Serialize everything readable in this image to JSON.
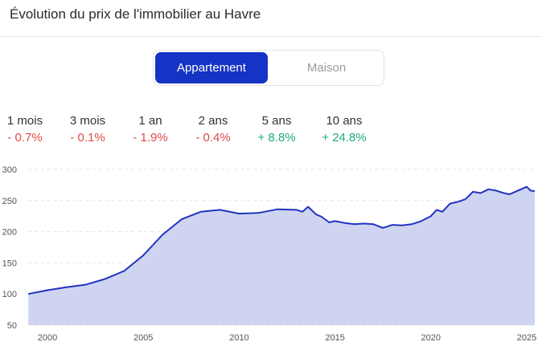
{
  "title": "Évolution du prix de l'immobilier au Havre",
  "toggle": {
    "active": "Appartement",
    "inactive": "Maison"
  },
  "periods": [
    {
      "label": "1 mois",
      "value": "- 0.7%",
      "trend": "down"
    },
    {
      "label": "3 mois",
      "value": "- 0.1%",
      "trend": "down"
    },
    {
      "label": "1 an",
      "value": "- 1.9%",
      "trend": "down"
    },
    {
      "label": "2 ans",
      "value": "- 0.4%",
      "trend": "down"
    },
    {
      "label": "5 ans",
      "value": "+ 8.8%",
      "trend": "up"
    },
    {
      "label": "10 ans",
      "value": "+ 24.8%",
      "trend": "up"
    }
  ],
  "colors": {
    "accent": "#1533c4",
    "line": "#1f33c0",
    "area": "#cfd5f1",
    "down": "#e04a4a",
    "up": "#1fae7a"
  },
  "chart_data": {
    "type": "area",
    "title": "",
    "xlabel": "",
    "ylabel": "",
    "xlim": [
      1998.9,
      2025.5
    ],
    "ylim": [
      50,
      300
    ],
    "yticks": [
      50,
      100,
      150,
      200,
      250,
      300
    ],
    "xticks": [
      2000,
      2005,
      2010,
      2015,
      2020,
      2025
    ],
    "grid": true,
    "series": [
      {
        "x": [
          1999.0,
          2000.0,
          2001.0,
          2002.0,
          2003.0,
          2004.0,
          2005.0,
          2006.0,
          2007.0,
          2008.0,
          2009.0,
          2010.0,
          2011.0,
          2012.0,
          2013.0,
          2013.3,
          2013.6,
          2014.0,
          2014.3,
          2014.7,
          2015.0,
          2015.5,
          2016.0,
          2016.5,
          2017.0,
          2017.5,
          2018.0,
          2018.5,
          2019.0,
          2019.5,
          2020.0,
          2020.3,
          2020.6,
          2021.0,
          2021.4,
          2021.8,
          2022.2,
          2022.6,
          2023.0,
          2023.4,
          2023.8,
          2024.1,
          2024.4,
          2024.7,
          2025.0,
          2025.2,
          2025.5
        ],
        "y": [
          100,
          106,
          111,
          115,
          124,
          137,
          162,
          195,
          220,
          232,
          235,
          229,
          230,
          236,
          235,
          232,
          240,
          228,
          224,
          215,
          217,
          214,
          212,
          213,
          212,
          206,
          211,
          210,
          212,
          217,
          225,
          235,
          232,
          245,
          248,
          252,
          264,
          262,
          268,
          266,
          262,
          260,
          264,
          268,
          272,
          266,
          265
        ]
      }
    ]
  }
}
